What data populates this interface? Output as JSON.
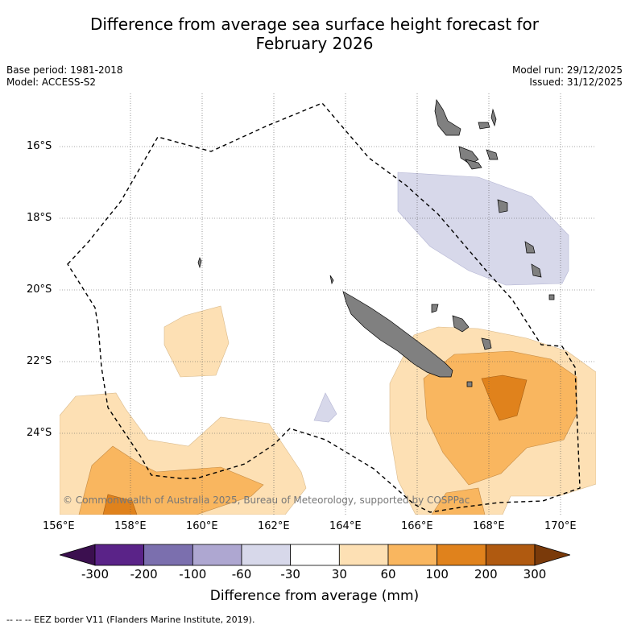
{
  "title_line1": "Difference from average sea surface height forecast for",
  "title_line2": "February 2026",
  "meta_left": [
    "Base period: 1981-2018",
    "Model: ACCESS-S2"
  ],
  "meta_right": [
    "Model run: 29/12/2025",
    "Issued: 31/12/2025"
  ],
  "map": {
    "lat_labels": [
      "16°S",
      "18°S",
      "20°S",
      "22°S",
      "24°S"
    ],
    "lon_labels": [
      "156°E",
      "158°E",
      "160°E",
      "162°E",
      "164°E",
      "166°E",
      "168°E",
      "170°E"
    ],
    "copyright": "© Commonwealth of Australia 2025, Bureau of Meteorology, supported by COSPPac",
    "land_color": "#808080",
    "eez_line": "dashed black"
  },
  "colorbar": {
    "ticks": [
      "-300",
      "-200",
      "-100",
      "-60",
      "-30",
      "30",
      "60",
      "100",
      "200",
      "300"
    ],
    "colors": [
      "#3b0f4f",
      "#5a2388",
      "#7b6fae",
      "#aea7d1",
      "#d7d8ea",
      "#ffffff",
      "#fde0b4",
      "#f9b65f",
      "#e0821c",
      "#b05a10",
      "#7a3a0a"
    ],
    "title": "Difference from average (mm)"
  },
  "legend_footer": "--  --  -- EEZ border V11 (Flanders Marine Institute, 2019)."
}
